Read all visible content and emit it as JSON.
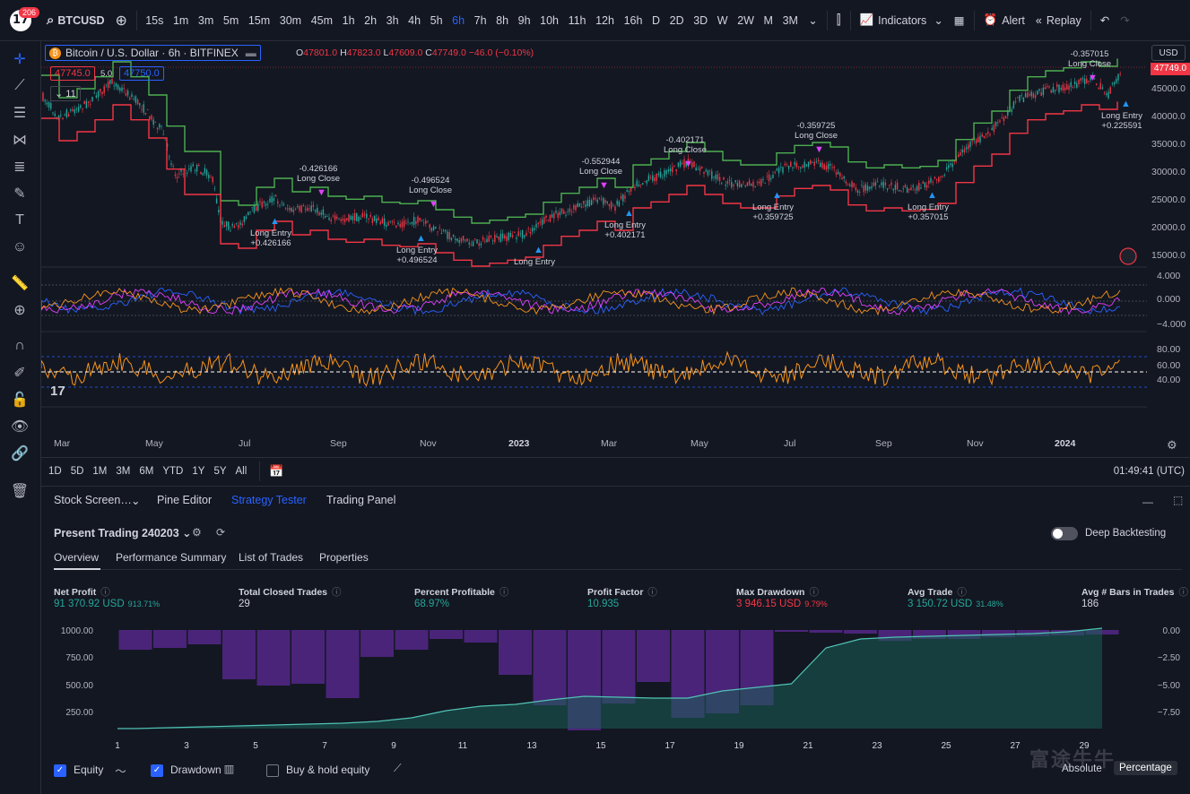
{
  "topbar": {
    "notif_count": "206",
    "symbol": "BTCUSD",
    "intervals": [
      "15s",
      "1m",
      "3m",
      "5m",
      "15m",
      "30m",
      "45m",
      "1h",
      "2h",
      "3h",
      "4h",
      "5h",
      "6h",
      "7h",
      "8h",
      "9h",
      "10h",
      "11h",
      "12h",
      "16h",
      "D",
      "2D",
      "3D",
      "W",
      "2W",
      "M",
      "3M"
    ],
    "active_interval": "6h",
    "indicators_label": "Indicators",
    "alert_label": "Alert",
    "replay_label": "Replay"
  },
  "legend": {
    "title": "Bitcoin / U.S. Dollar · 6h · BITFINEX",
    "o_label": "O",
    "o_val": "47801.0",
    "h_label": "H",
    "h_val": "47823.0",
    "l_label": "L",
    "l_val": "47609.0",
    "c_label": "C",
    "c_val": "47749.0",
    "change": "−46.0 (−0.10%)",
    "bid": "47745.0",
    "spread": "5.0",
    "ask": "47750.0",
    "indicator_count": "11"
  },
  "price_axis": {
    "currency": "USD",
    "current_price": "47749.0",
    "labels": [
      "45000.0",
      "40000.0",
      "35000.0",
      "30000.0",
      "25000.0",
      "20000.0",
      "15000.0"
    ]
  },
  "osc1_axis": [
    "4.000",
    "0.000",
    "−4.000"
  ],
  "osc2_axis": [
    "80.00",
    "60.00",
    "40.00"
  ],
  "time_axis": [
    "Mar",
    "May",
    "Jul",
    "Sep",
    "Nov",
    "2023",
    "Mar",
    "May",
    "Jul",
    "Sep",
    "Nov",
    "2024"
  ],
  "annotations": [
    {
      "line1": "-0.426166",
      "line2": "Long Close"
    },
    {
      "line1": "Long Entry",
      "line2": "+0.426166"
    },
    {
      "line1": "-0.496524",
      "line2": "Long Close"
    },
    {
      "line1": "Long Entry",
      "line2": "+0.496524"
    },
    {
      "line1": "Long Entry",
      "line2": ""
    },
    {
      "line1": "-0.552944",
      "line2": "Long Close"
    },
    {
      "line1": "Long Entry",
      "line2": "+0.402171"
    },
    {
      "line1": "-0.402171",
      "line2": "Long Close"
    },
    {
      "line1": "Long Entry",
      "line2": "+0.359725"
    },
    {
      "line1": "-0.359725",
      "line2": "Long Close"
    },
    {
      "line1": "Long Entry",
      "line2": "+0.357015"
    },
    {
      "line1": "-0.357015",
      "line2": "Long Close"
    },
    {
      "line1": "Long Entry",
      "line2": "+0.225591"
    }
  ],
  "range_bar": {
    "ranges": [
      "1D",
      "5D",
      "1M",
      "3M",
      "6M",
      "YTD",
      "1Y",
      "5Y",
      "All"
    ],
    "clock": "01:49:41 (UTC)"
  },
  "panel": {
    "tabs": [
      "Stock Screen…",
      "Pine Editor",
      "Strategy Tester",
      "Trading Panel"
    ],
    "active_tab": "Strategy Tester",
    "strategy_name": "Present Trading 240203",
    "deep_backtesting": "Deep Backtesting",
    "subtabs": [
      "Overview",
      "Performance Summary",
      "List of Trades",
      "Properties"
    ],
    "kpis": [
      {
        "label": "Net Profit",
        "value": "91 370.92 USD",
        "sub": "913.71%",
        "color": "green"
      },
      {
        "label": "Total Closed Trades",
        "value": "29",
        "sub": "",
        "color": "white"
      },
      {
        "label": "Percent Profitable",
        "value": "68.97%",
        "sub": "",
        "color": "green"
      },
      {
        "label": "Profit Factor",
        "value": "10.935",
        "sub": "",
        "color": "green"
      },
      {
        "label": "Max Drawdown",
        "value": "3 946.15 USD",
        "sub": "9.79%",
        "color": "red"
      },
      {
        "label": "Avg Trade",
        "value": "3 150.72 USD",
        "sub": "31.48%",
        "color": "green"
      },
      {
        "label": "Avg # Bars in Trades",
        "value": "186",
        "sub": "",
        "color": "white"
      }
    ],
    "equity_left_axis": [
      "1000.00",
      "750.00",
      "500.00",
      "250.00"
    ],
    "equity_right_axis": [
      "0.00",
      "−2.50",
      "−5.00",
      "−7.50"
    ],
    "trade_axis": [
      "1",
      "3",
      "5",
      "7",
      "9",
      "11",
      "13",
      "15",
      "17",
      "19",
      "21",
      "23",
      "25",
      "27",
      "29"
    ],
    "checks": [
      {
        "label": "Equity",
        "checked": true
      },
      {
        "label": "Drawdown",
        "checked": true
      },
      {
        "label": "Buy & hold equity",
        "checked": false
      }
    ],
    "absolute_label": "Absolute",
    "percentage_label": "Percentage",
    "watermark": "富途牛牛"
  },
  "colors": {
    "bg": "#131722",
    "up": "#26a69a",
    "down": "#f23645",
    "accent": "#2962ff",
    "purple": "#5b2c83",
    "orange": "#f7931a"
  }
}
